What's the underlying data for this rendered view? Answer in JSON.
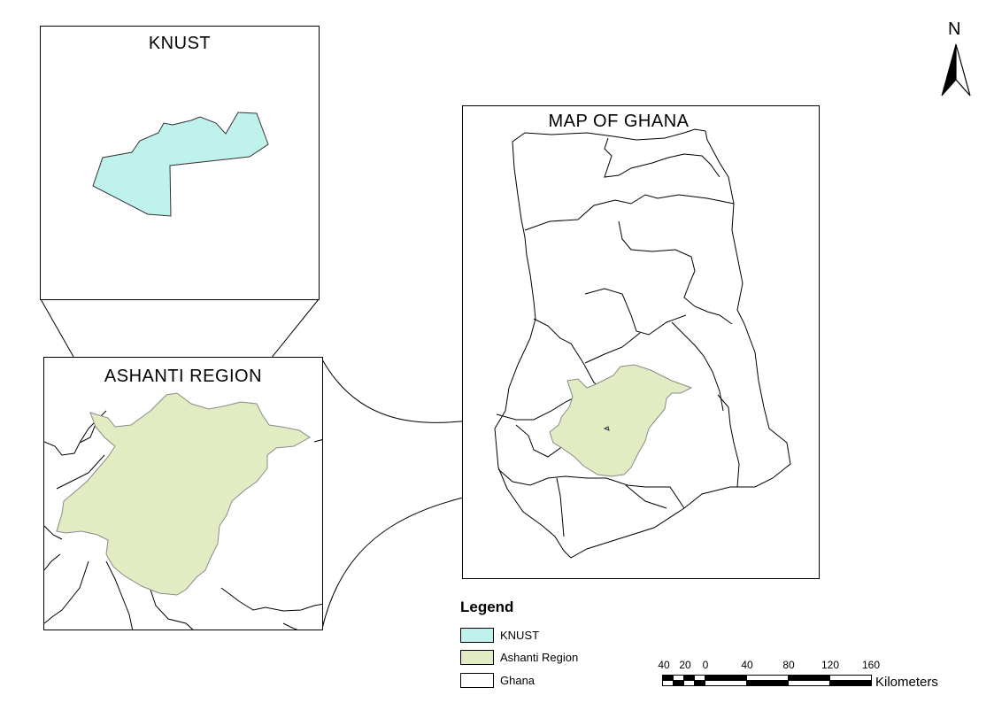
{
  "inset_knust": {
    "title": "KNUST"
  },
  "inset_ashanti": {
    "title": "ASHANTI REGION"
  },
  "main_map": {
    "title": "MAP OF GHANA"
  },
  "north_arrow": {
    "label": "N",
    "icon": "north-arrow-icon"
  },
  "legend": {
    "title": "Legend",
    "items": [
      {
        "label": "KNUST",
        "color": "#bff2ec"
      },
      {
        "label": "Ashanti Region",
        "color": "#e1ecc2"
      },
      {
        "label": "Ghana",
        "color": "#ffffff"
      }
    ]
  },
  "scale_bar": {
    "ticks": [
      "40",
      "20",
      "0",
      "40",
      "80",
      "120",
      "160"
    ],
    "unit": "Kilometers"
  },
  "colors": {
    "knust_fill": "#bff2ec",
    "ashanti_fill": "#e1ecc2",
    "ashanti_stroke": "#8a8a8a",
    "boundary": "#000000"
  }
}
